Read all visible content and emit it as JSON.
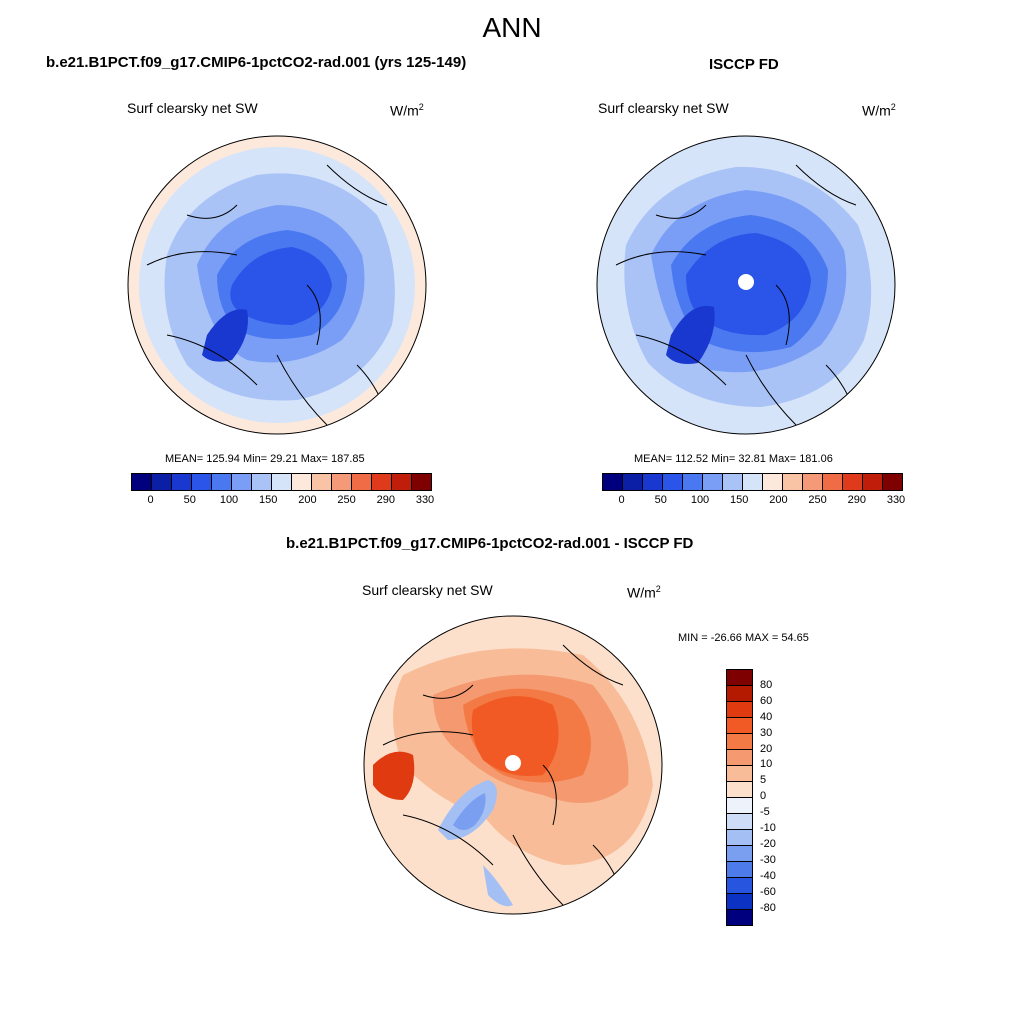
{
  "main_title": "ANN",
  "panel_left": {
    "case_title": "b.e21.B1PCT.f09_g17.CMIP6-1pctCO2-rad.001 (yrs 125-149)",
    "variable": "Surf clearsky net SW",
    "units_base": "W/m",
    "units_exp": "2",
    "stats": "MEAN= 125.94  Min=  29.21  Max= 187.85"
  },
  "panel_right": {
    "case_title": "ISCCP FD",
    "variable": "Surf clearsky net SW",
    "units_base": "W/m",
    "units_exp": "2",
    "stats": "MEAN= 112.52  Min=  32.81  Max= 181.06"
  },
  "panel_diff": {
    "case_title": "b.e21.B1PCT.f09_g17.CMIP6-1pctCO2-rad.001 - ISCCP FD",
    "variable": "Surf clearsky net SW",
    "units_base": "W/m",
    "units_exp": "2",
    "stats": "MIN = -26.66 MAX =  54.65"
  },
  "colorbar_abs": {
    "tick_labels": [
      "0",
      "50",
      "100",
      "150",
      "200",
      "250",
      "290",
      "330"
    ],
    "colors": [
      "#00007f",
      "#0a1ea6",
      "#1838d0",
      "#2a55e8",
      "#4a78f0",
      "#7a9ef5",
      "#a9c3f7",
      "#d6e4fa",
      "#fde9dc",
      "#f9c3a6",
      "#f59a78",
      "#f06c46",
      "#e03a1c",
      "#c01e0a",
      "#7f0000"
    ]
  },
  "colorbar_diff": {
    "labels": [
      "80",
      "60",
      "40",
      "30",
      "20",
      "10",
      "5",
      "0",
      "-5",
      "-10",
      "-20",
      "-30",
      "-40",
      "-60",
      "-80"
    ],
    "colors": [
      "#7f0000",
      "#b31a00",
      "#e03a10",
      "#f25a25",
      "#f37a45",
      "#f59a70",
      "#f8bd98",
      "#fce0cc",
      "#eef2fa",
      "#cfdcf7",
      "#a4bff3",
      "#7b9ff0",
      "#4d7bea",
      "#2755e0",
      "#0c32c4",
      "#00007f"
    ]
  }
}
